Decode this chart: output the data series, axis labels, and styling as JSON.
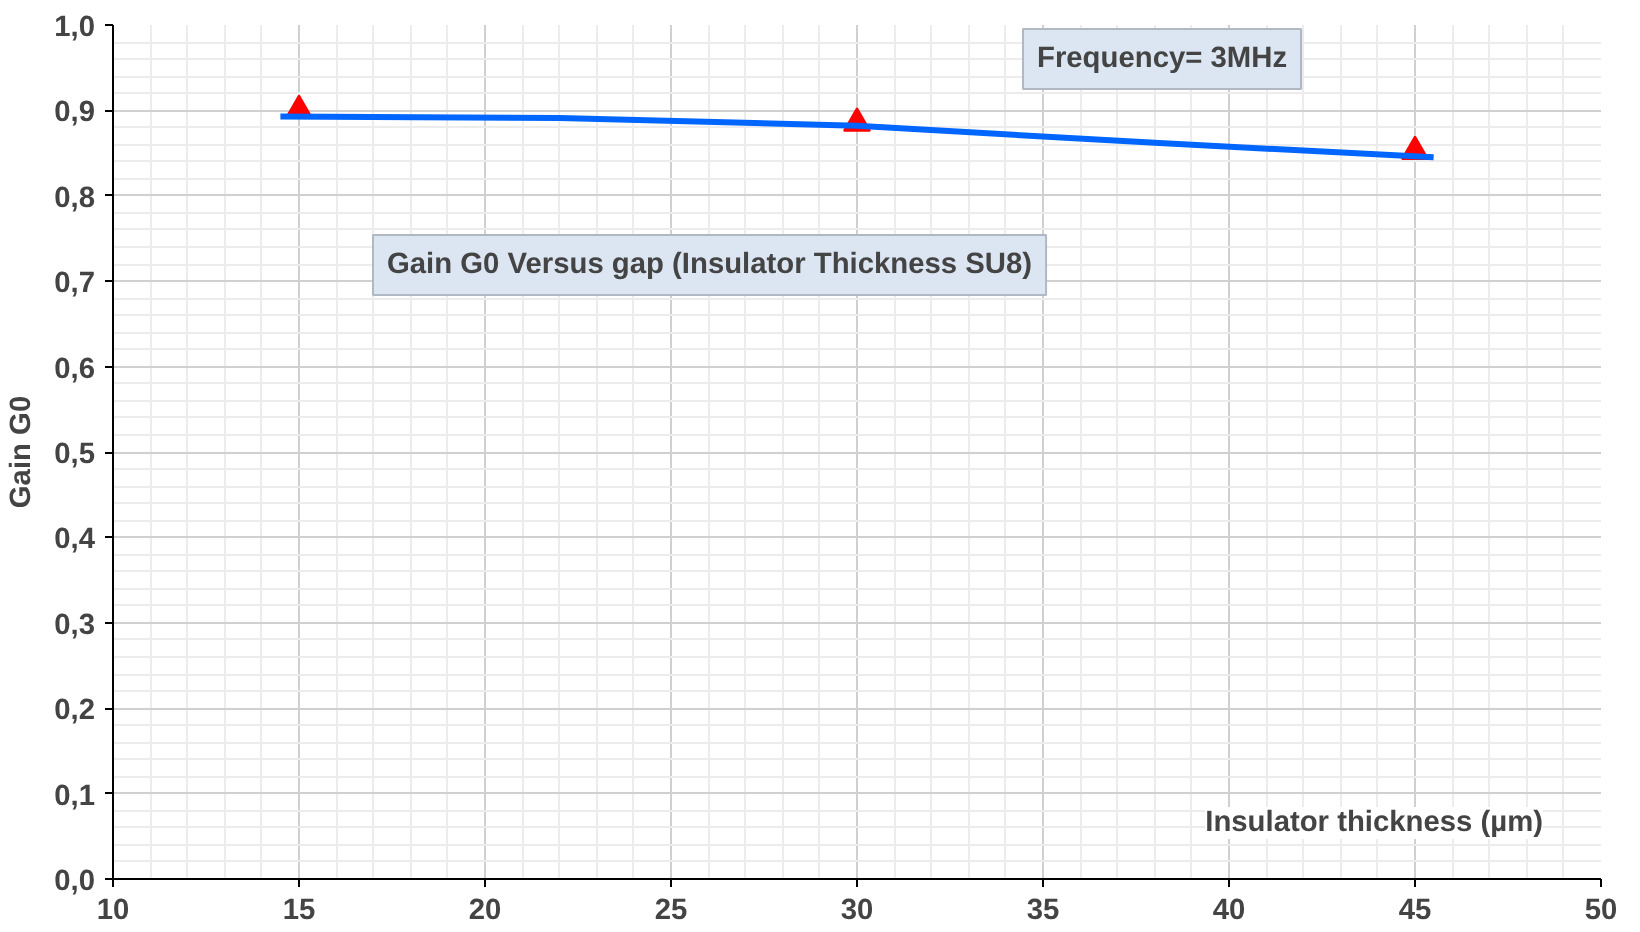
{
  "chart_data": {
    "type": "scatter",
    "title": "Gain G0 Versus gap (Insulator Thickness SU8)",
    "xlabel": "Insulator thickness (µm)",
    "ylabel": "Gain G0",
    "annotations": [
      "Frequency= 3MHz"
    ],
    "series": [
      {
        "color": "#ff0000",
        "marker": "triangle",
        "x": [
          15,
          30,
          45
        ],
        "values": [
          0.9,
          0.885,
          0.852
        ]
      },
      {
        "type": "line",
        "color": "#0066ff",
        "marker": "none",
        "x": [
          14.5,
          22,
          30,
          38,
          45.5
        ],
        "values": [
          0.893,
          0.891,
          0.882,
          0.862,
          0.845
        ]
      }
    ],
    "xlim": [
      10,
      50
    ],
    "xticks": [
      10,
      15,
      20,
      25,
      30,
      35,
      40,
      45,
      50
    ],
    "ylim": [
      0,
      1
    ],
    "yticks": [
      {
        "value": 0,
        "label": "0,0"
      },
      {
        "value": 0.1,
        "label": "0,1"
      },
      {
        "value": 0.2,
        "label": "0,2"
      },
      {
        "value": 0.3,
        "label": "0,3"
      },
      {
        "value": 0.4,
        "label": "0,4"
      },
      {
        "value": 0.5,
        "label": "0,5"
      },
      {
        "value": 0.6,
        "label": "0,6"
      },
      {
        "value": 0.7,
        "label": "0,7"
      },
      {
        "value": 0.8,
        "label": "0,8"
      },
      {
        "value": 0.9,
        "label": "0,9"
      },
      {
        "value": 1.0,
        "label": "1,0"
      }
    ],
    "grid": true
  }
}
